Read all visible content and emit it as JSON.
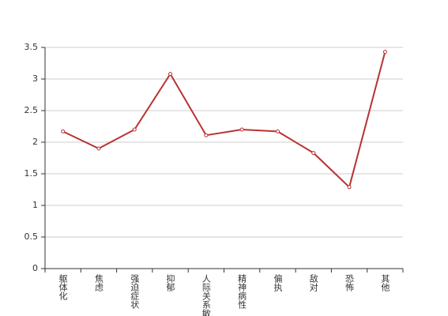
{
  "chart_data": {
    "type": "line",
    "categories": [
      "躯体化",
      "焦虑",
      "强迫症状",
      "抑郁",
      "人际关系敏感",
      "精神病性",
      "偏执",
      "敌对",
      "恐怖",
      "其他"
    ],
    "values": [
      2.17,
      1.9,
      2.2,
      3.08,
      2.11,
      2.2,
      2.17,
      1.83,
      1.29,
      3.43
    ],
    "color": "#b83232",
    "ylim": [
      0,
      3.5
    ],
    "yticks": [
      0,
      0.5,
      1,
      1.5,
      2,
      2.5,
      3,
      3.5
    ],
    "grid": true
  }
}
